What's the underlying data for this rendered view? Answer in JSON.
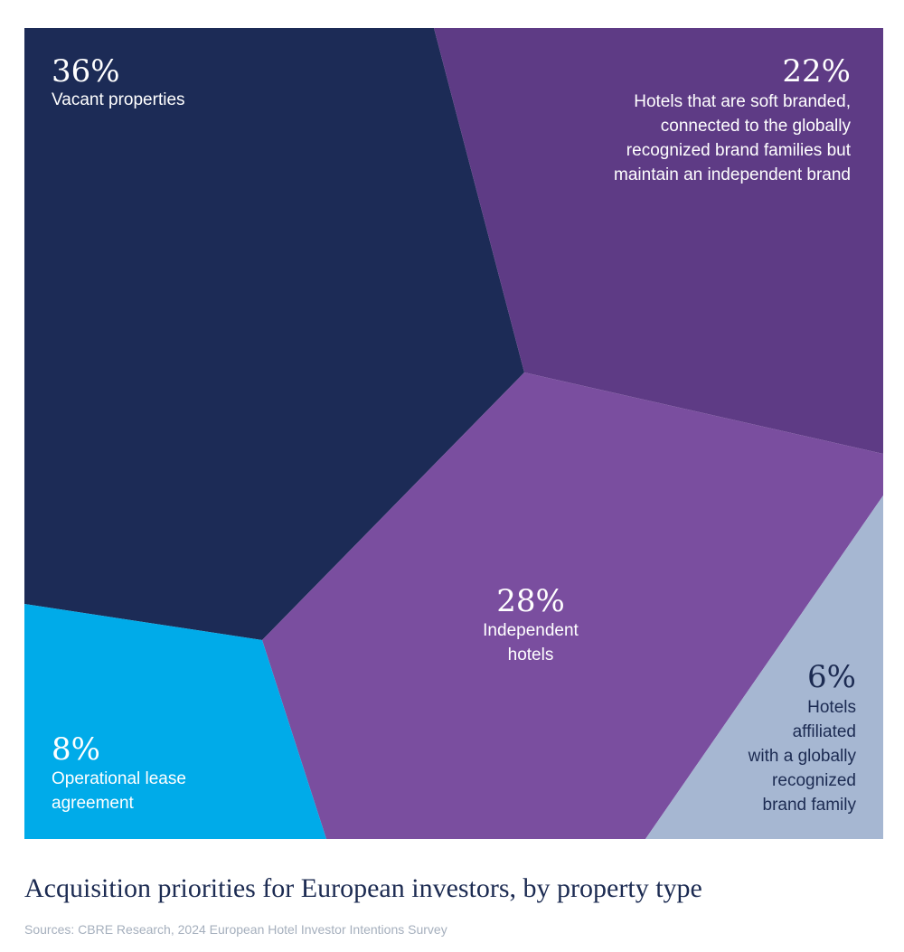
{
  "chart_data": {
    "type": "voronoi-treemap",
    "title": "Acquisition priorities for European investors, by property type",
    "source": "Sources: CBRE Research, 2024 European Hotel Investor Intentions Survey",
    "unit": "%",
    "slices": [
      {
        "id": "vacant",
        "value": 36,
        "pct_label": "36%",
        "lines": [
          "Vacant properties"
        ],
        "color": "#1c2b56",
        "text_color": "#ffffff"
      },
      {
        "id": "soft-branded",
        "value": 22,
        "pct_label": "22%",
        "lines": [
          "Hotels that are soft branded,",
          "connected to the globally",
          "recognized brand families but",
          "maintain an independent brand"
        ],
        "color": "#5e3b85",
        "text_color": "#ffffff"
      },
      {
        "id": "independent",
        "value": 28,
        "pct_label": "28%",
        "lines": [
          "Independent",
          "hotels"
        ],
        "color": "#7a4e9f",
        "text_color": "#ffffff"
      },
      {
        "id": "operational-lease",
        "value": 8,
        "pct_label": "8%",
        "lines": [
          "Operational lease",
          "agreement"
        ],
        "color": "#00abe9",
        "text_color": "#ffffff"
      },
      {
        "id": "affiliated",
        "value": 6,
        "pct_label": "6%",
        "lines": [
          "Hotels",
          "affiliated",
          "with a globally",
          "recognized",
          "brand family"
        ],
        "color": "#a6b7d2",
        "text_color": "#1c2b52"
      }
    ]
  }
}
